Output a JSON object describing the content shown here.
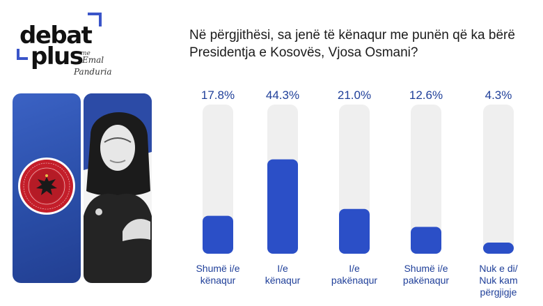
{
  "brand": {
    "word_top": "debat",
    "word_bottom": "plus",
    "me": "me",
    "signature": [
      "Emal",
      "Panduria"
    ],
    "accent_color": "#3a55c9"
  },
  "question": "Në përgjithësi, sa jenë të kënaqur me punën që ka bërë Presidentja e Kosovës, Vjosa Osmani?",
  "colors": {
    "bar_fill": "#2b4fc7",
    "bar_track": "#efefef",
    "label": "#1f3f99"
  },
  "chart_data": {
    "type": "bar",
    "categories": [
      [
        "Shumë i/e",
        "kënaqur"
      ],
      [
        "I/e",
        "kënaqur"
      ],
      [
        "I/e",
        "pakënaqur"
      ],
      [
        "Shumë i/e",
        "pakënaqur"
      ],
      [
        "Nuk e di/",
        "Nuk kam",
        "përgjigje"
      ]
    ],
    "values": [
      17.8,
      44.3,
      21.0,
      12.6,
      4.3
    ],
    "value_labels": [
      "17.8%",
      "44.3%",
      "21.0%",
      "12.6%",
      "4.3%"
    ],
    "unit": "%",
    "ylim": [
      0,
      70
    ],
    "grid": false,
    "legend": "none"
  }
}
